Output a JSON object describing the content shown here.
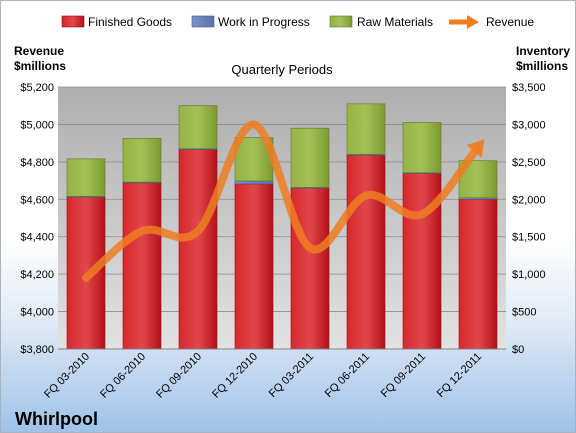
{
  "brand": "Whirlpool",
  "chart_data": {
    "type": "bar",
    "stacked": true,
    "subtitle": "Quarterly Periods",
    "categories": [
      "FQ 03-2010",
      "FQ 06-2010",
      "FQ 09-2010",
      "FQ 12-2010",
      "FQ 03-2011",
      "FQ 06-2011",
      "FQ 09-2011",
      "FQ 12-2011"
    ],
    "series": [
      {
        "name": "Finished Goods",
        "axis": "right",
        "color": "#c0141a",
        "values": [
          2030,
          2220,
          2665,
          2205,
          2150,
          2590,
          2345,
          2000
        ]
      },
      {
        "name": "Work in Progress",
        "axis": "right",
        "color": "#6d86bd",
        "values": [
          10,
          10,
          10,
          40,
          10,
          10,
          10,
          20
        ]
      },
      {
        "name": "Raw Materials",
        "axis": "right",
        "color": "#8aa83a",
        "values": [
          500,
          585,
          575,
          580,
          790,
          675,
          670,
          495
        ]
      },
      {
        "name": "Revenue",
        "axis": "left",
        "type": "line",
        "color": "#ee7d22",
        "values": [
          4180,
          4430,
          4430,
          5000,
          4340,
          4620,
          4520,
          4880
        ]
      }
    ],
    "left_axis": {
      "label_lines": [
        "Revenue",
        "$millions"
      ],
      "range": [
        3800,
        5200
      ],
      "ticks": [
        "$3,800",
        "$4,000",
        "$4,200",
        "$4,400",
        "$4,600",
        "$4,800",
        "$5,000",
        "$5,200"
      ]
    },
    "right_axis": {
      "label_lines": [
        "Inventory",
        "$millions"
      ],
      "range": [
        0,
        3500
      ],
      "ticks": [
        "$0",
        "$500",
        "$1,000",
        "$1,500",
        "$2,000",
        "$2,500",
        "$3,000",
        "$3,500"
      ]
    },
    "legend_position": "top",
    "grid": true
  }
}
